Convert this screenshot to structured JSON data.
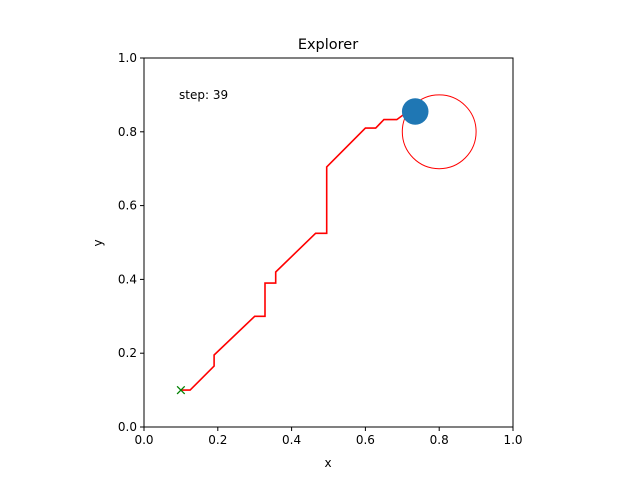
{
  "chart_data": {
    "type": "line",
    "title": "Explorer",
    "xlabel": "x",
    "ylabel": "y",
    "xlim": [
      0.0,
      1.0
    ],
    "ylim": [
      0.0,
      1.0
    ],
    "xticks": [
      "0.0",
      "0.2",
      "0.4",
      "0.6",
      "0.8",
      "1.0"
    ],
    "yticks": [
      "0.0",
      "0.2",
      "0.4",
      "0.6",
      "0.8",
      "1.0"
    ],
    "grid": false,
    "annotation": {
      "text": "step: 39",
      "x": 0.095,
      "y": 0.9
    },
    "start_marker": {
      "x": 0.1,
      "y": 0.1,
      "symbol": "x",
      "color": "#008000"
    },
    "trajectory": {
      "color": "#ff0000",
      "x": [
        0.1,
        0.125,
        0.19,
        0.19,
        0.3,
        0.328,
        0.328,
        0.357,
        0.357,
        0.465,
        0.495,
        0.495,
        0.6,
        0.628,
        0.65,
        0.685,
        0.715,
        0.735
      ],
      "y": [
        0.1,
        0.1,
        0.165,
        0.195,
        0.3,
        0.3,
        0.39,
        0.39,
        0.42,
        0.525,
        0.525,
        0.705,
        0.81,
        0.81,
        0.833,
        0.833,
        0.855,
        0.855
      ]
    },
    "agent": {
      "x": 0.735,
      "y": 0.855,
      "radius": 0.036,
      "color": "#1f77b4"
    },
    "target": {
      "x": 0.8,
      "y": 0.8,
      "radius": 0.1,
      "color": "#ff0000"
    }
  }
}
